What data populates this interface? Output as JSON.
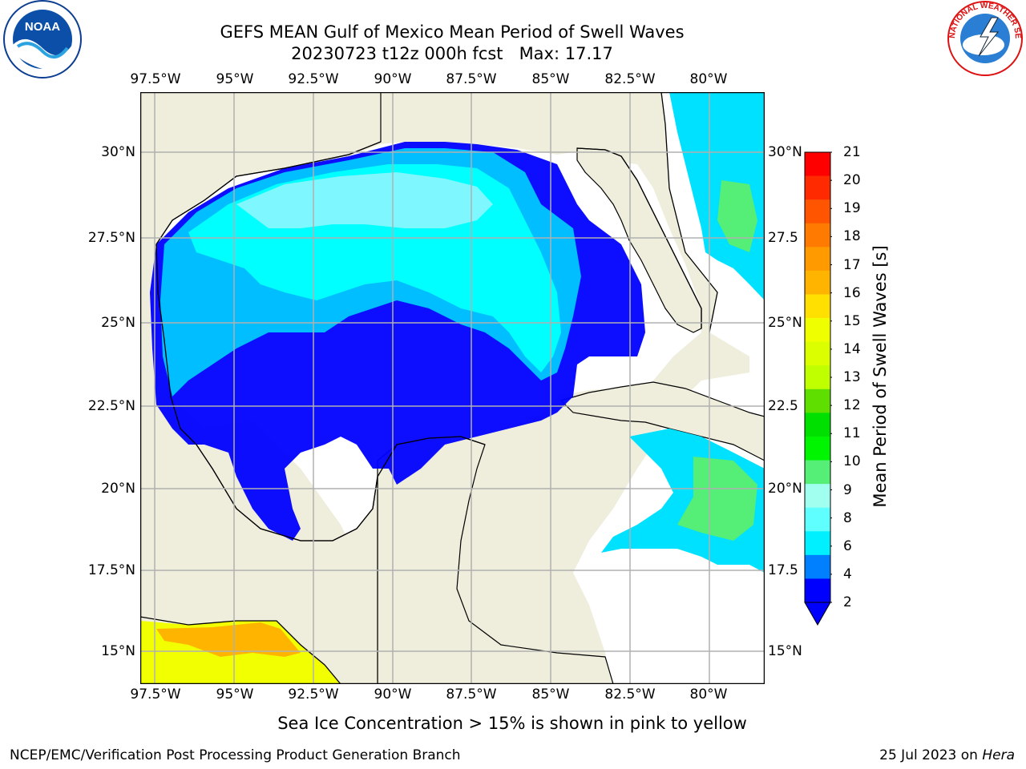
{
  "header": {
    "title_line1": "GEFS MEAN Gulf of Mexico Mean Period of Swell Waves",
    "title_line2": "20230723 t12z 000h fcst   Max: 17.17"
  },
  "logos": {
    "left": "NOAA",
    "right": "NATIONAL WEATHER SERVICE"
  },
  "map": {
    "lon_labels": [
      "97.5°W",
      "95°W",
      "92.5°W",
      "90°W",
      "87.5°W",
      "85°W",
      "82.5°W",
      "80°W"
    ],
    "lat_labels_left": [
      "30°N",
      "27.5°N",
      "25°N",
      "22.5°N",
      "20°N",
      "17.5°N",
      "15°N"
    ],
    "lat_labels_right": [
      "30°N",
      "27.5",
      "25°N",
      "22.5",
      "20°N",
      "17.5",
      "15°N"
    ],
    "colors": {
      "land": "#efeedd",
      "water": "#ffffff",
      "grid": "#b0b0b0",
      "coast": "#000000"
    }
  },
  "colorbar": {
    "label": "Mean Period of Swell Waves [s]",
    "ticks": [
      "21",
      "20",
      "19",
      "18",
      "17",
      "16",
      "15",
      "14",
      "13",
      "12",
      "11",
      "10",
      "9",
      "8",
      "6",
      "4",
      "2"
    ],
    "colors": [
      "#ff0000",
      "#ff2a00",
      "#ff5500",
      "#ff7a00",
      "#ff9a00",
      "#ffb400",
      "#ffe000",
      "#f0ff00",
      "#dcff00",
      "#bfff00",
      "#5fdf00",
      "#00e000",
      "#00f500",
      "#55ee77",
      "#a0ffee",
      "#60ffff",
      "#00f0ff",
      "#0080ff",
      "#0000ff"
    ]
  },
  "note": "Sea Ice Concentration > 15% is shown in pink to yellow",
  "footer": {
    "left": "NCEP/EMC/Verification Post Processing Product Generation Branch",
    "right_date": "25 Jul 2023 on ",
    "right_host": "Hera"
  }
}
